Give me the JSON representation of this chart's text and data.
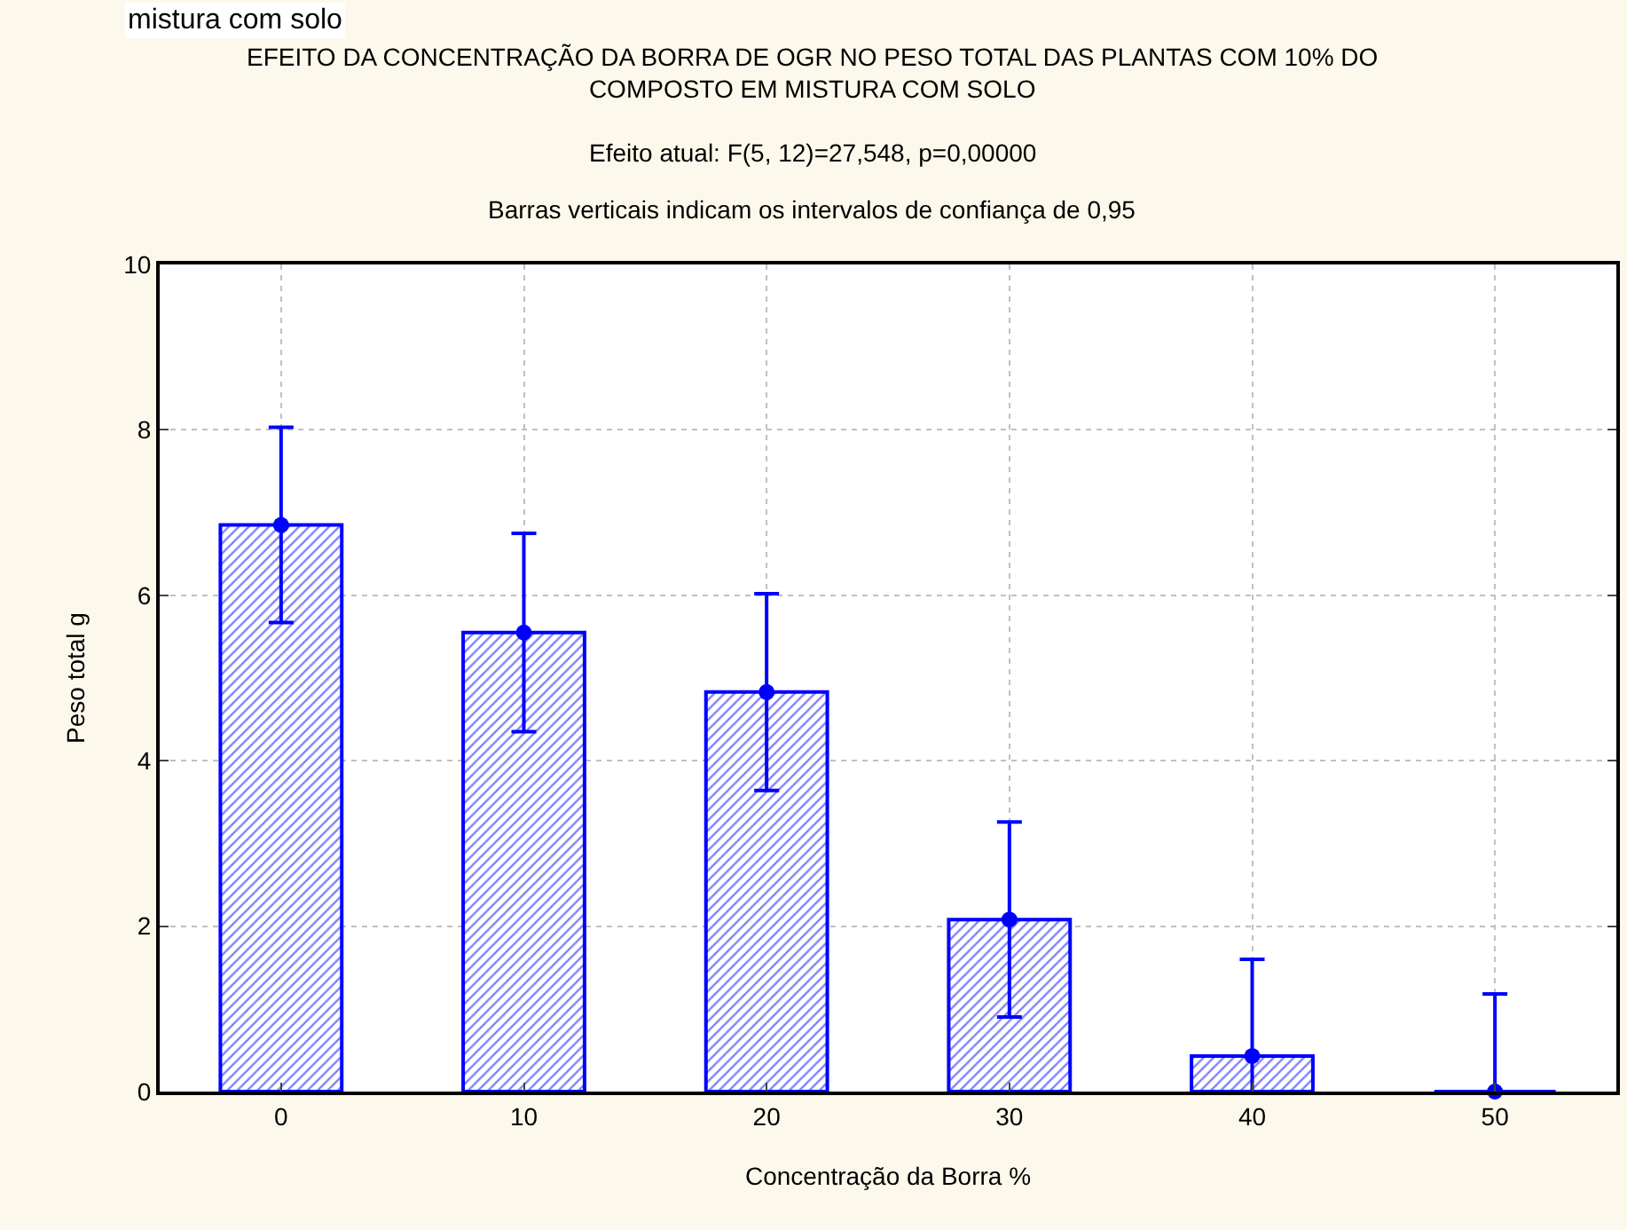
{
  "chart_data": {
    "type": "bar",
    "title": "EFEITO DA CONCENTRAÇÃO DA BORRA DE OGR NO PESO TOTAL DAS PLANTAS COM 10% DO COMPOSTO EM MISTURA COM SOLO",
    "subtitle": "Efeito atual: F(5, 12)=27,548, p=0,00000",
    "annotations": [
      "Barras verticais indicam os intervalos de confiança de 0,95",
      "mistura com solo"
    ],
    "xlabel": "Concentração da Borra %",
    "ylabel": "Peso total g",
    "categories": [
      "0",
      "10",
      "20",
      "30",
      "40",
      "50"
    ],
    "series": [
      {
        "color": "#0000ff",
        "values": [
          6.85,
          5.55,
          4.83,
          2.08,
          0.43,
          0.0
        ],
        "errors": [
          1.18,
          1.2,
          1.19,
          1.18,
          [
            0,
            1.6
          ],
          [
            0,
            1.18
          ]
        ]
      },
      {
        "type": "scatter",
        "color": "#0000ff",
        "x": [
          "0",
          "10",
          "20",
          "30",
          "40",
          "50"
        ],
        "values": [
          6.85,
          5.55,
          4.83,
          2.08,
          0.43,
          0.0
        ]
      }
    ],
    "ylim": [
      0,
      10
    ],
    "yticks": [
      0,
      2,
      4,
      6,
      8,
      10
    ],
    "grid": true,
    "marker": "circle"
  }
}
